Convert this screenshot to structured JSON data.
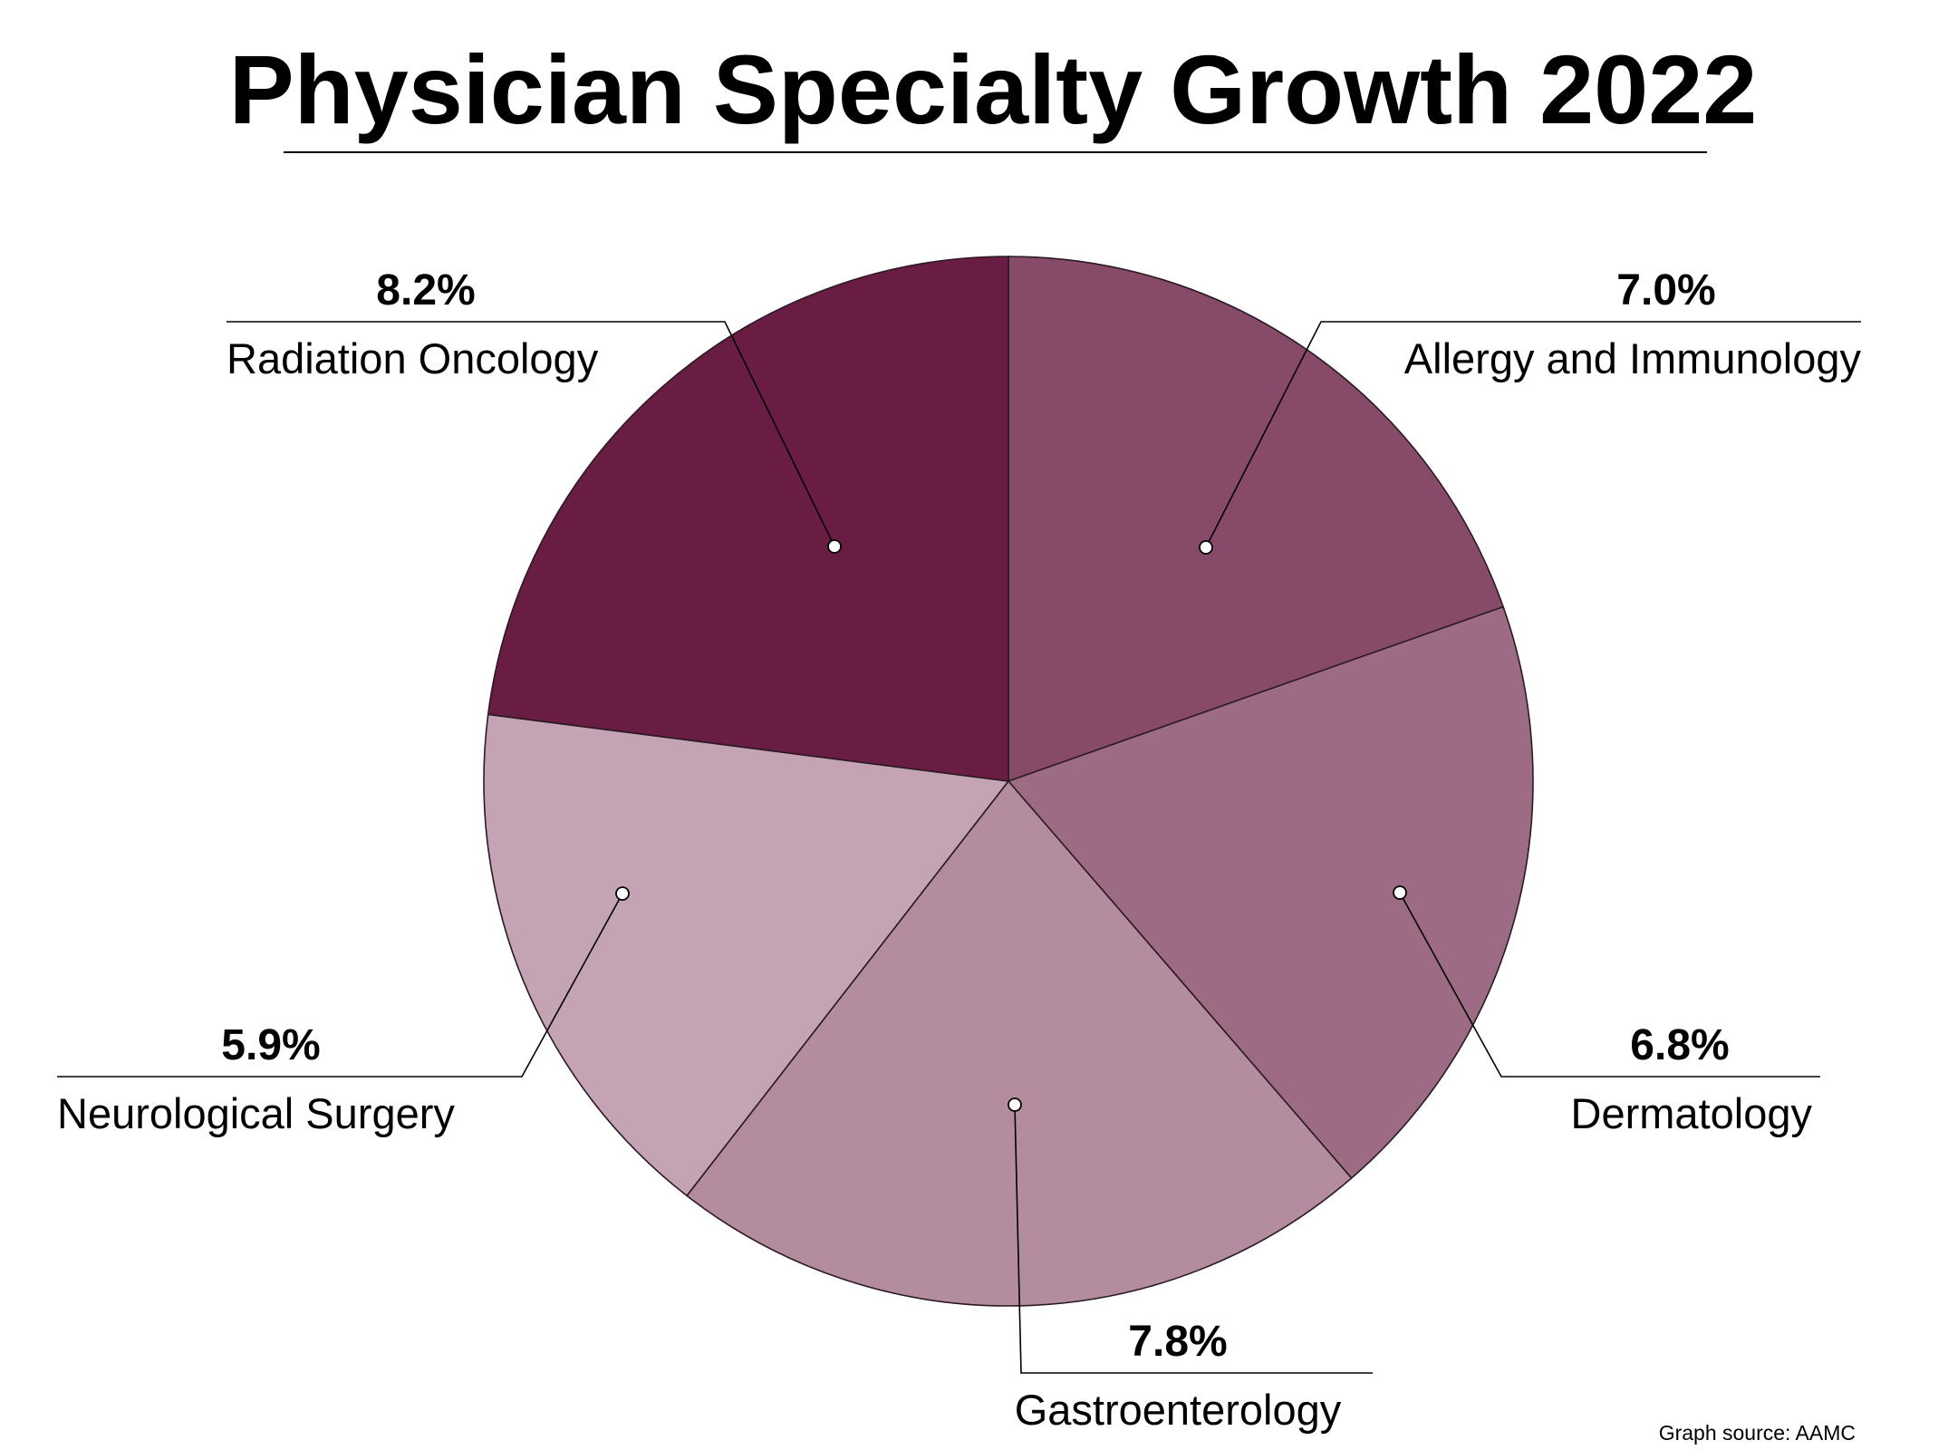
{
  "chart_data": {
    "type": "pie",
    "title": "Physician Specialty Growth 2022",
    "source": "Graph source: AAMC",
    "slices": [
      {
        "label": "Allergy and Immunology",
        "value": 7.0,
        "display": "7.0%",
        "color": "#884a69"
      },
      {
        "label": "Dermatology",
        "value": 6.8,
        "display": "6.8%",
        "color": "#9d6c84"
      },
      {
        "label": "Gastroenterology",
        "value": 7.8,
        "display": "7.8%",
        "color": "#b48c9f"
      },
      {
        "label": "Neurological Surgery",
        "value": 5.9,
        "display": "5.9%",
        "color": "#c4a3b4"
      },
      {
        "label": "Radiation Oncology",
        "value": 8.2,
        "display": "8.2%",
        "color": "#6a1d43"
      }
    ]
  }
}
